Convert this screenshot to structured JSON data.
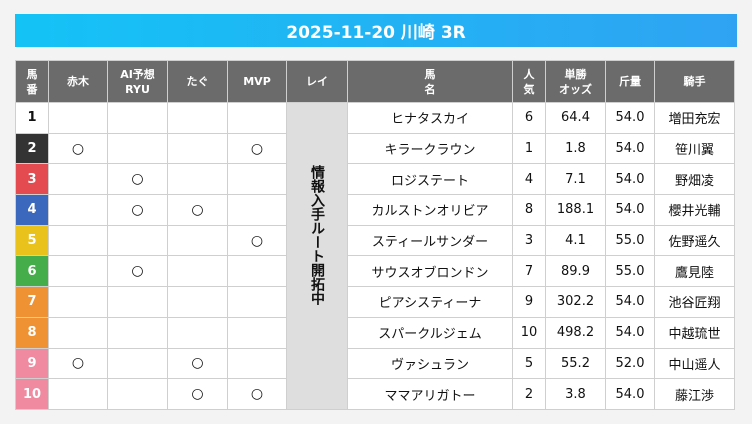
{
  "title": "2025-11-20 川崎 3R",
  "headers": {
    "umaban": "馬\n番",
    "akagi": "赤木",
    "ai1": "AI予想",
    "ai2": "RYU",
    "tagu": "たぐ",
    "mvp": "MVP",
    "rei": "レイ",
    "name1": "馬",
    "name2": "名",
    "pop1": "人",
    "pop2": "気",
    "odds1": "単勝",
    "odds2": "オッズ",
    "weight": "斤量",
    "jockey": "騎手",
    "umaban1": "馬",
    "umaban2": "番"
  },
  "rei_note": "情報入手ルート開拓中",
  "mark_symbol": "○",
  "rows": [
    {
      "num": "1",
      "color": "#ffffff",
      "text": "#111111",
      "akagi": "",
      "ai": "",
      "tagu": "",
      "mvp": "",
      "name": "ヒナタスカイ",
      "pop": "6",
      "odds": "64.4",
      "weight": "54.0",
      "jockey": "増田充宏"
    },
    {
      "num": "2",
      "color": "#333333",
      "text": "#ffffff",
      "akagi": "○",
      "ai": "",
      "tagu": "",
      "mvp": "○",
      "name": "キラークラウン",
      "pop": "1",
      "odds": "1.8",
      "weight": "54.0",
      "jockey": "笹川翼"
    },
    {
      "num": "3",
      "color": "#e44b50",
      "text": "#ffffff",
      "akagi": "",
      "ai": "○",
      "tagu": "",
      "mvp": "",
      "name": "ロジステート",
      "pop": "4",
      "odds": "7.1",
      "weight": "54.0",
      "jockey": "野畑凌"
    },
    {
      "num": "4",
      "color": "#3b68bd",
      "text": "#ffffff",
      "akagi": "",
      "ai": "○",
      "tagu": "○",
      "mvp": "",
      "name": "カルストンオリビア",
      "pop": "8",
      "odds": "188.1",
      "weight": "54.0",
      "jockey": "櫻井光輔"
    },
    {
      "num": "5",
      "color": "#e9c31c",
      "text": "#ffffff",
      "akagi": "",
      "ai": "",
      "tagu": "",
      "mvp": "○",
      "name": "スティールサンダー",
      "pop": "3",
      "odds": "4.1",
      "weight": "55.0",
      "jockey": "佐野遥久"
    },
    {
      "num": "6",
      "color": "#45ad4a",
      "text": "#ffffff",
      "akagi": "",
      "ai": "○",
      "tagu": "",
      "mvp": "",
      "name": "サウスオブロンドン",
      "pop": "7",
      "odds": "89.9",
      "weight": "55.0",
      "jockey": "鷹見陸"
    },
    {
      "num": "7",
      "color": "#ee9233",
      "text": "#ffffff",
      "akagi": "",
      "ai": "",
      "tagu": "",
      "mvp": "",
      "name": "ピアシスティーナ",
      "pop": "9",
      "odds": "302.2",
      "weight": "54.0",
      "jockey": "池谷匠翔"
    },
    {
      "num": "8",
      "color": "#ee9233",
      "text": "#ffffff",
      "akagi": "",
      "ai": "",
      "tagu": "",
      "mvp": "",
      "name": "スパークルジェム",
      "pop": "10",
      "odds": "498.2",
      "weight": "54.0",
      "jockey": "中越琉世"
    },
    {
      "num": "9",
      "color": "#ef8aa0",
      "text": "#ffffff",
      "akagi": "○",
      "ai": "",
      "tagu": "○",
      "mvp": "",
      "name": "ヴァシュラン",
      "pop": "5",
      "odds": "55.2",
      "weight": "52.0",
      "jockey": "中山遥人"
    },
    {
      "num": "10",
      "color": "#ef8aa0",
      "text": "#ffffff",
      "akagi": "",
      "ai": "",
      "tagu": "○",
      "mvp": "○",
      "name": "ママアリガトー",
      "pop": "2",
      "odds": "3.8",
      "weight": "54.0",
      "jockey": "藤江渉"
    }
  ]
}
